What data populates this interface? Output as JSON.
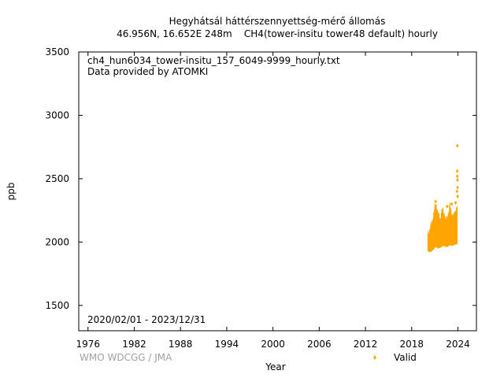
{
  "chart_data": {
    "type": "scatter",
    "title_line1": "Hegyhátsál háttérszennyettség-mérő állomás",
    "title_line2": "46.956N, 16.652E 248m    CH4(tower-insitu tower48 default) hourly",
    "file_label": "ch4_hun6034_tower-insitu_157_6049-9999_hourly.txt",
    "provider_label": "Data provided by ATOMKI",
    "period_label": "2020/02/01 - 2023/12/31",
    "watermark": "WMO WDCGG / JMA",
    "xlabel": "Year",
    "ylabel": "ppb",
    "xlim": [
      1974.8,
      2026.4
    ],
    "ylim": [
      1300,
      3500
    ],
    "xticks": [
      1976,
      1982,
      1988,
      1994,
      2000,
      2006,
      2012,
      2018,
      2024
    ],
    "yticks": [
      1500,
      2000,
      2500,
      3000,
      3500
    ],
    "legend": {
      "position": "bottom-right",
      "label": "Valid",
      "color": "#ffa500"
    },
    "grid": false,
    "series": [
      {
        "name": "Valid",
        "color": "#ffa500",
        "band": [
          {
            "x": 2020.1,
            "low": 1930,
            "high": 2080
          },
          {
            "x": 2020.3,
            "low": 1920,
            "high": 2110
          },
          {
            "x": 2020.55,
            "low": 1925,
            "high": 2150
          },
          {
            "x": 2020.8,
            "low": 1940,
            "high": 2220
          },
          {
            "x": 2021.0,
            "low": 1955,
            "high": 2290
          },
          {
            "x": 2021.2,
            "low": 1960,
            "high": 2310
          },
          {
            "x": 2021.45,
            "low": 1950,
            "high": 2230
          },
          {
            "x": 2021.7,
            "low": 1955,
            "high": 2200
          },
          {
            "x": 2021.95,
            "low": 1965,
            "high": 2270
          },
          {
            "x": 2022.2,
            "low": 1970,
            "high": 2250
          },
          {
            "x": 2022.45,
            "low": 1960,
            "high": 2180
          },
          {
            "x": 2022.7,
            "low": 1965,
            "high": 2230
          },
          {
            "x": 2022.95,
            "low": 1975,
            "high": 2300
          },
          {
            "x": 2023.2,
            "low": 1970,
            "high": 2240
          },
          {
            "x": 2023.45,
            "low": 1975,
            "high": 2220
          },
          {
            "x": 2023.7,
            "low": 1980,
            "high": 2270
          },
          {
            "x": 2023.95,
            "low": 1985,
            "high": 2300
          }
        ],
        "outliers": [
          {
            "x": 2023.93,
            "y": 2760
          },
          {
            "x": 2023.9,
            "y": 2560
          },
          {
            "x": 2023.92,
            "y": 2520
          },
          {
            "x": 2023.94,
            "y": 2490
          },
          {
            "x": 2023.95,
            "y": 2430
          },
          {
            "x": 2023.88,
            "y": 2400
          },
          {
            "x": 2023.96,
            "y": 2360
          },
          {
            "x": 2023.7,
            "y": 2310
          },
          {
            "x": 2023.2,
            "y": 2300
          },
          {
            "x": 2022.6,
            "y": 2280
          },
          {
            "x": 2021.1,
            "y": 2320
          }
        ]
      }
    ]
  }
}
